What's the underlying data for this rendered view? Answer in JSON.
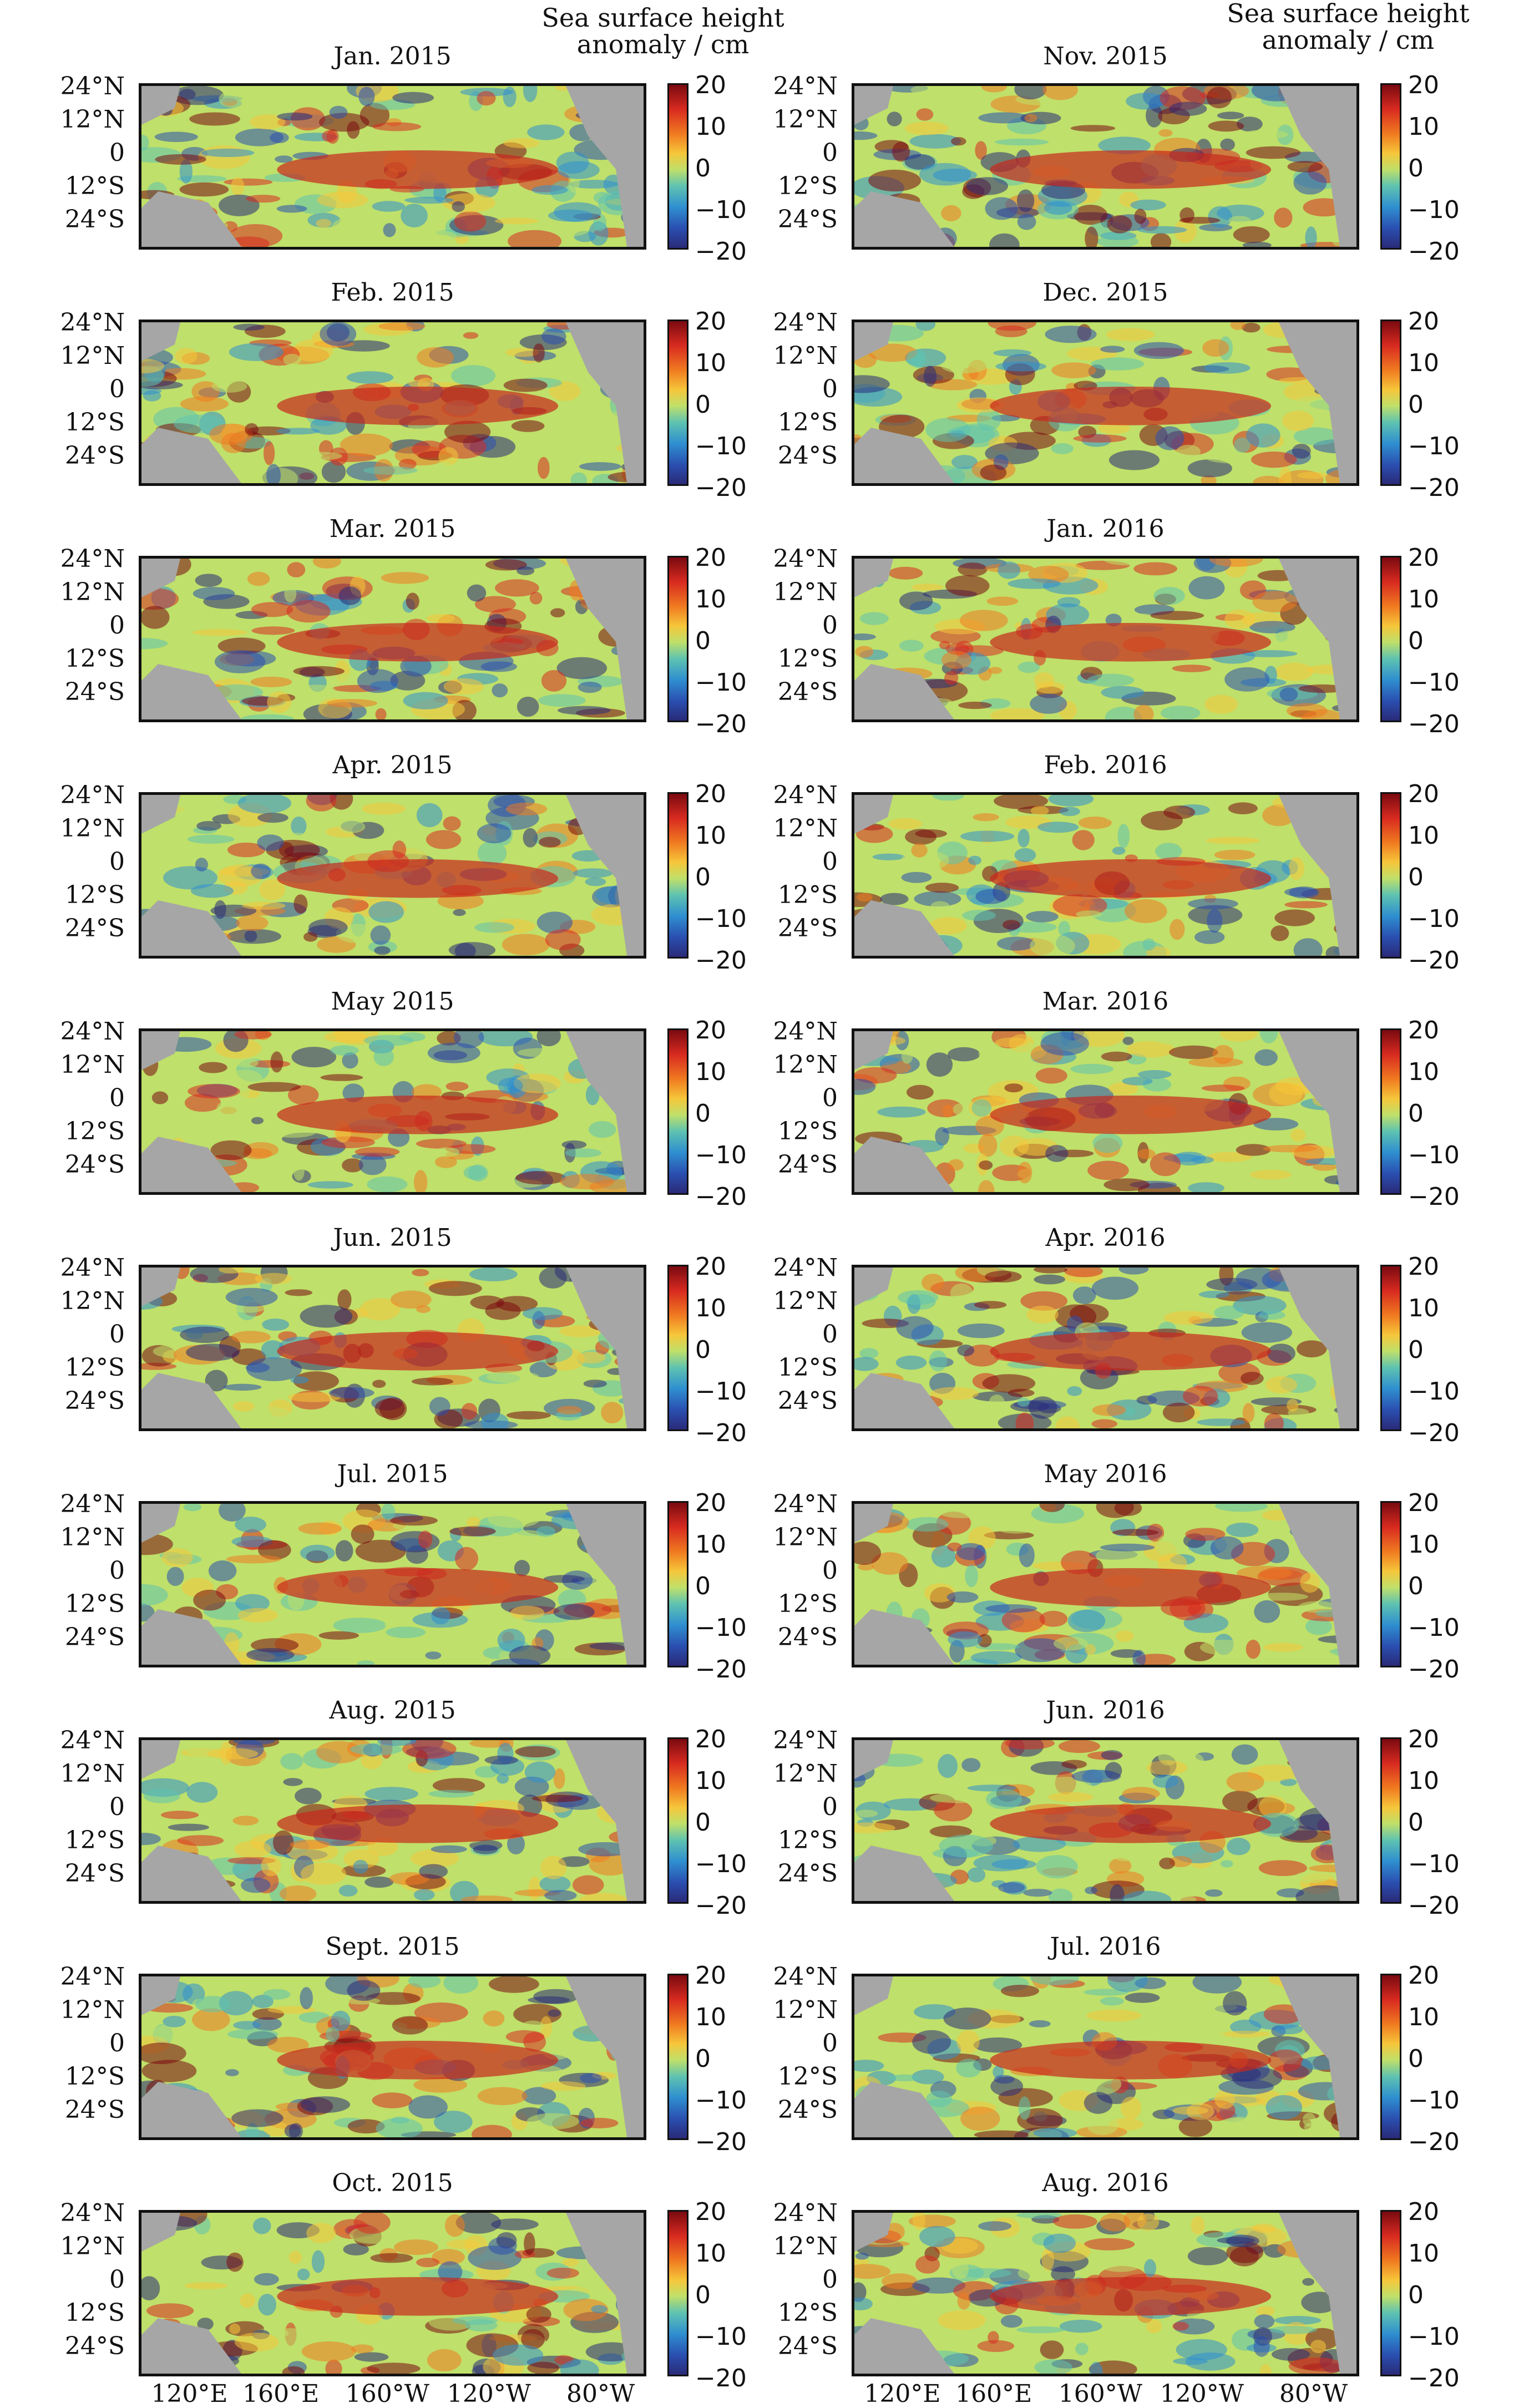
{
  "colorbar": {
    "title_line1": "Sea surface height",
    "title_line2": "anomaly / cm",
    "ticks": [
      "20",
      "10",
      "0",
      "−10",
      "−20"
    ],
    "range": [
      -20,
      20
    ],
    "colors": [
      "#7a0a10",
      "#d82a20",
      "#f07a20",
      "#f6c63a",
      "#bfe06a",
      "#5fc3b0",
      "#2f8fd0",
      "#2a4fb0",
      "#2a2a78"
    ]
  },
  "lat_labels": [
    "24°N",
    "12°N",
    "0",
    "12°S",
    "24°S"
  ],
  "lon_labels": [
    "120°E",
    "160°E",
    "160°W",
    "120°W",
    "80°W"
  ],
  "colors": {
    "land": "#a6a6a6",
    "ocean_background": "#bfe06a",
    "frame": "#111111"
  },
  "panels": [
    {
      "title": "Jan. 2015"
    },
    {
      "title": "Feb. 2015"
    },
    {
      "title": "Mar. 2015"
    },
    {
      "title": "Apr. 2015"
    },
    {
      "title": "May 2015"
    },
    {
      "title": "Jun. 2015"
    },
    {
      "title": "Jul. 2015"
    },
    {
      "title": "Aug. 2015"
    },
    {
      "title": "Sept. 2015"
    },
    {
      "title": "Oct. 2015"
    },
    {
      "title": "Nov. 2015"
    },
    {
      "title": "Dec. 2015"
    },
    {
      "title": "Jan. 2016"
    },
    {
      "title": "Feb. 2016"
    },
    {
      "title": "Mar. 2016"
    },
    {
      "title": "Apr. 2016"
    },
    {
      "title": "May 2016"
    },
    {
      "title": "Jun. 2016"
    },
    {
      "title": "Jul. 2016"
    },
    {
      "title": "Aug. 2016"
    }
  ]
}
